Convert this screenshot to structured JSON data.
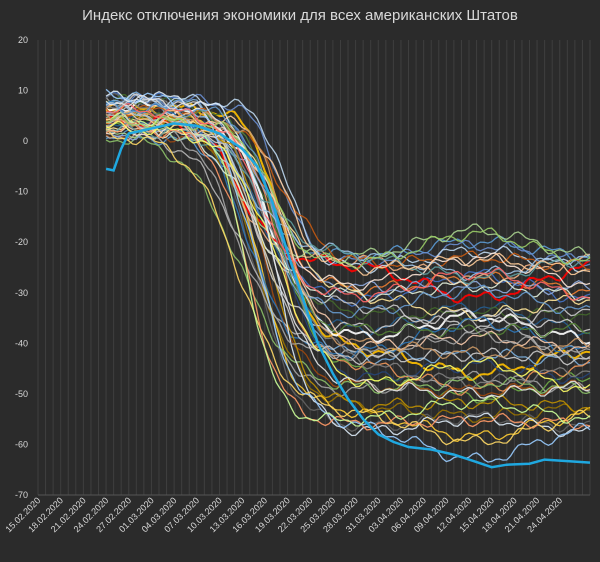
{
  "chart_data": {
    "type": "line",
    "title": "Индекс отключения экономики для всех американских Штатов",
    "xlabel": "",
    "ylabel": "",
    "ylim": [
      -70,
      20
    ],
    "yticks": [
      "20",
      "10",
      "0",
      "-10",
      "-20",
      "-30",
      "-40",
      "-50",
      "-60",
      "-70"
    ],
    "grid": "vertical",
    "legend": "none",
    "x_tick_labels": [
      "15.02.2020",
      "18.02.2020",
      "21.02.2020",
      "24.02.2020",
      "27.02.2020",
      "01.03.2020",
      "04.03.2020",
      "07.03.2020",
      "10.03.2020",
      "13.03.2020",
      "16.03.2020",
      "19.03.2020",
      "22.03.2020",
      "25.03.2020",
      "28.03.2020",
      "31.03.2020",
      "03.04.2020",
      "06.04.2020",
      "09.04.2020",
      "12.04.2020",
      "15.04.2020",
      "18.04.2020",
      "21.04.2020",
      "24.04.2020"
    ],
    "x_start": "2020-02-15",
    "x_end": "2020-04-28",
    "data_start": "2020-02-24",
    "series_count": 51,
    "highlighted_series": [
      {
        "color": "#1fa8e0",
        "points": [
          [
            "2020-02-24",
            -5.5
          ],
          [
            "2020-02-25",
            -5.8
          ],
          [
            "2020-02-26",
            -1.5
          ],
          [
            "2020-02-27",
            1.5
          ],
          [
            "2020-03-01",
            2.5
          ],
          [
            "2020-03-04",
            3.5
          ],
          [
            "2020-03-07",
            3.0
          ],
          [
            "2020-03-10",
            1.5
          ],
          [
            "2020-03-13",
            -1.5
          ],
          [
            "2020-03-15",
            -5.0
          ],
          [
            "2020-03-17",
            -12.0
          ],
          [
            "2020-03-19",
            -22.0
          ],
          [
            "2020-03-21",
            -31.0
          ],
          [
            "2020-03-23",
            -40.0
          ],
          [
            "2020-03-25",
            -46.0
          ],
          [
            "2020-03-27",
            -51.0
          ],
          [
            "2020-03-29",
            -55.0
          ],
          [
            "2020-03-31",
            -58.0
          ],
          [
            "2020-04-02",
            -59.5
          ],
          [
            "2020-04-04",
            -60.5
          ],
          [
            "2020-04-07",
            -61.0
          ],
          [
            "2020-04-10",
            -62.0
          ],
          [
            "2020-04-13",
            -63.5
          ],
          [
            "2020-04-15",
            -64.5
          ],
          [
            "2020-04-17",
            -64.0
          ],
          [
            "2020-04-20",
            -63.8
          ],
          [
            "2020-04-22",
            -63.0
          ],
          [
            "2020-04-24",
            -63.2
          ],
          [
            "2020-04-28",
            -63.6
          ]
        ]
      }
    ],
    "series_colors": [
      "#5b9bd5",
      "#ed7d31",
      "#a5a5a5",
      "#ffc000",
      "#4472c4",
      "#70ad47",
      "#264478",
      "#9e480e",
      "#636363",
      "#997300",
      "#255e91",
      "#43682b",
      "#7cafdd",
      "#f1975a",
      "#b7b7b7",
      "#ffcd33",
      "#698ed0",
      "#8cc168",
      "#ffffff",
      "#ff0000",
      "#f4b183",
      "#c9c9c9",
      "#8faadc",
      "#a9d18e",
      "#bdd7ee",
      "#ffe699",
      "#d0cece",
      "#2e75b6",
      "#c55a11",
      "#548235",
      "#bf9000",
      "#7f7f7f",
      "#e2efda",
      "#fce4d6",
      "#ddebf7",
      "#ffd966",
      "#9dc3e6",
      "#f8cbad",
      "#a6a6a6",
      "#5f9ea0",
      "#ff9966",
      "#99ccff",
      "#ccff99",
      "#ffcc99",
      "#cccccc",
      "#6699cc",
      "#cc9966",
      "#99cc66",
      "#ffff66",
      "#ff6666",
      "#e6e6e6"
    ],
    "cluster_final_range": [
      -59,
      -20
    ]
  }
}
